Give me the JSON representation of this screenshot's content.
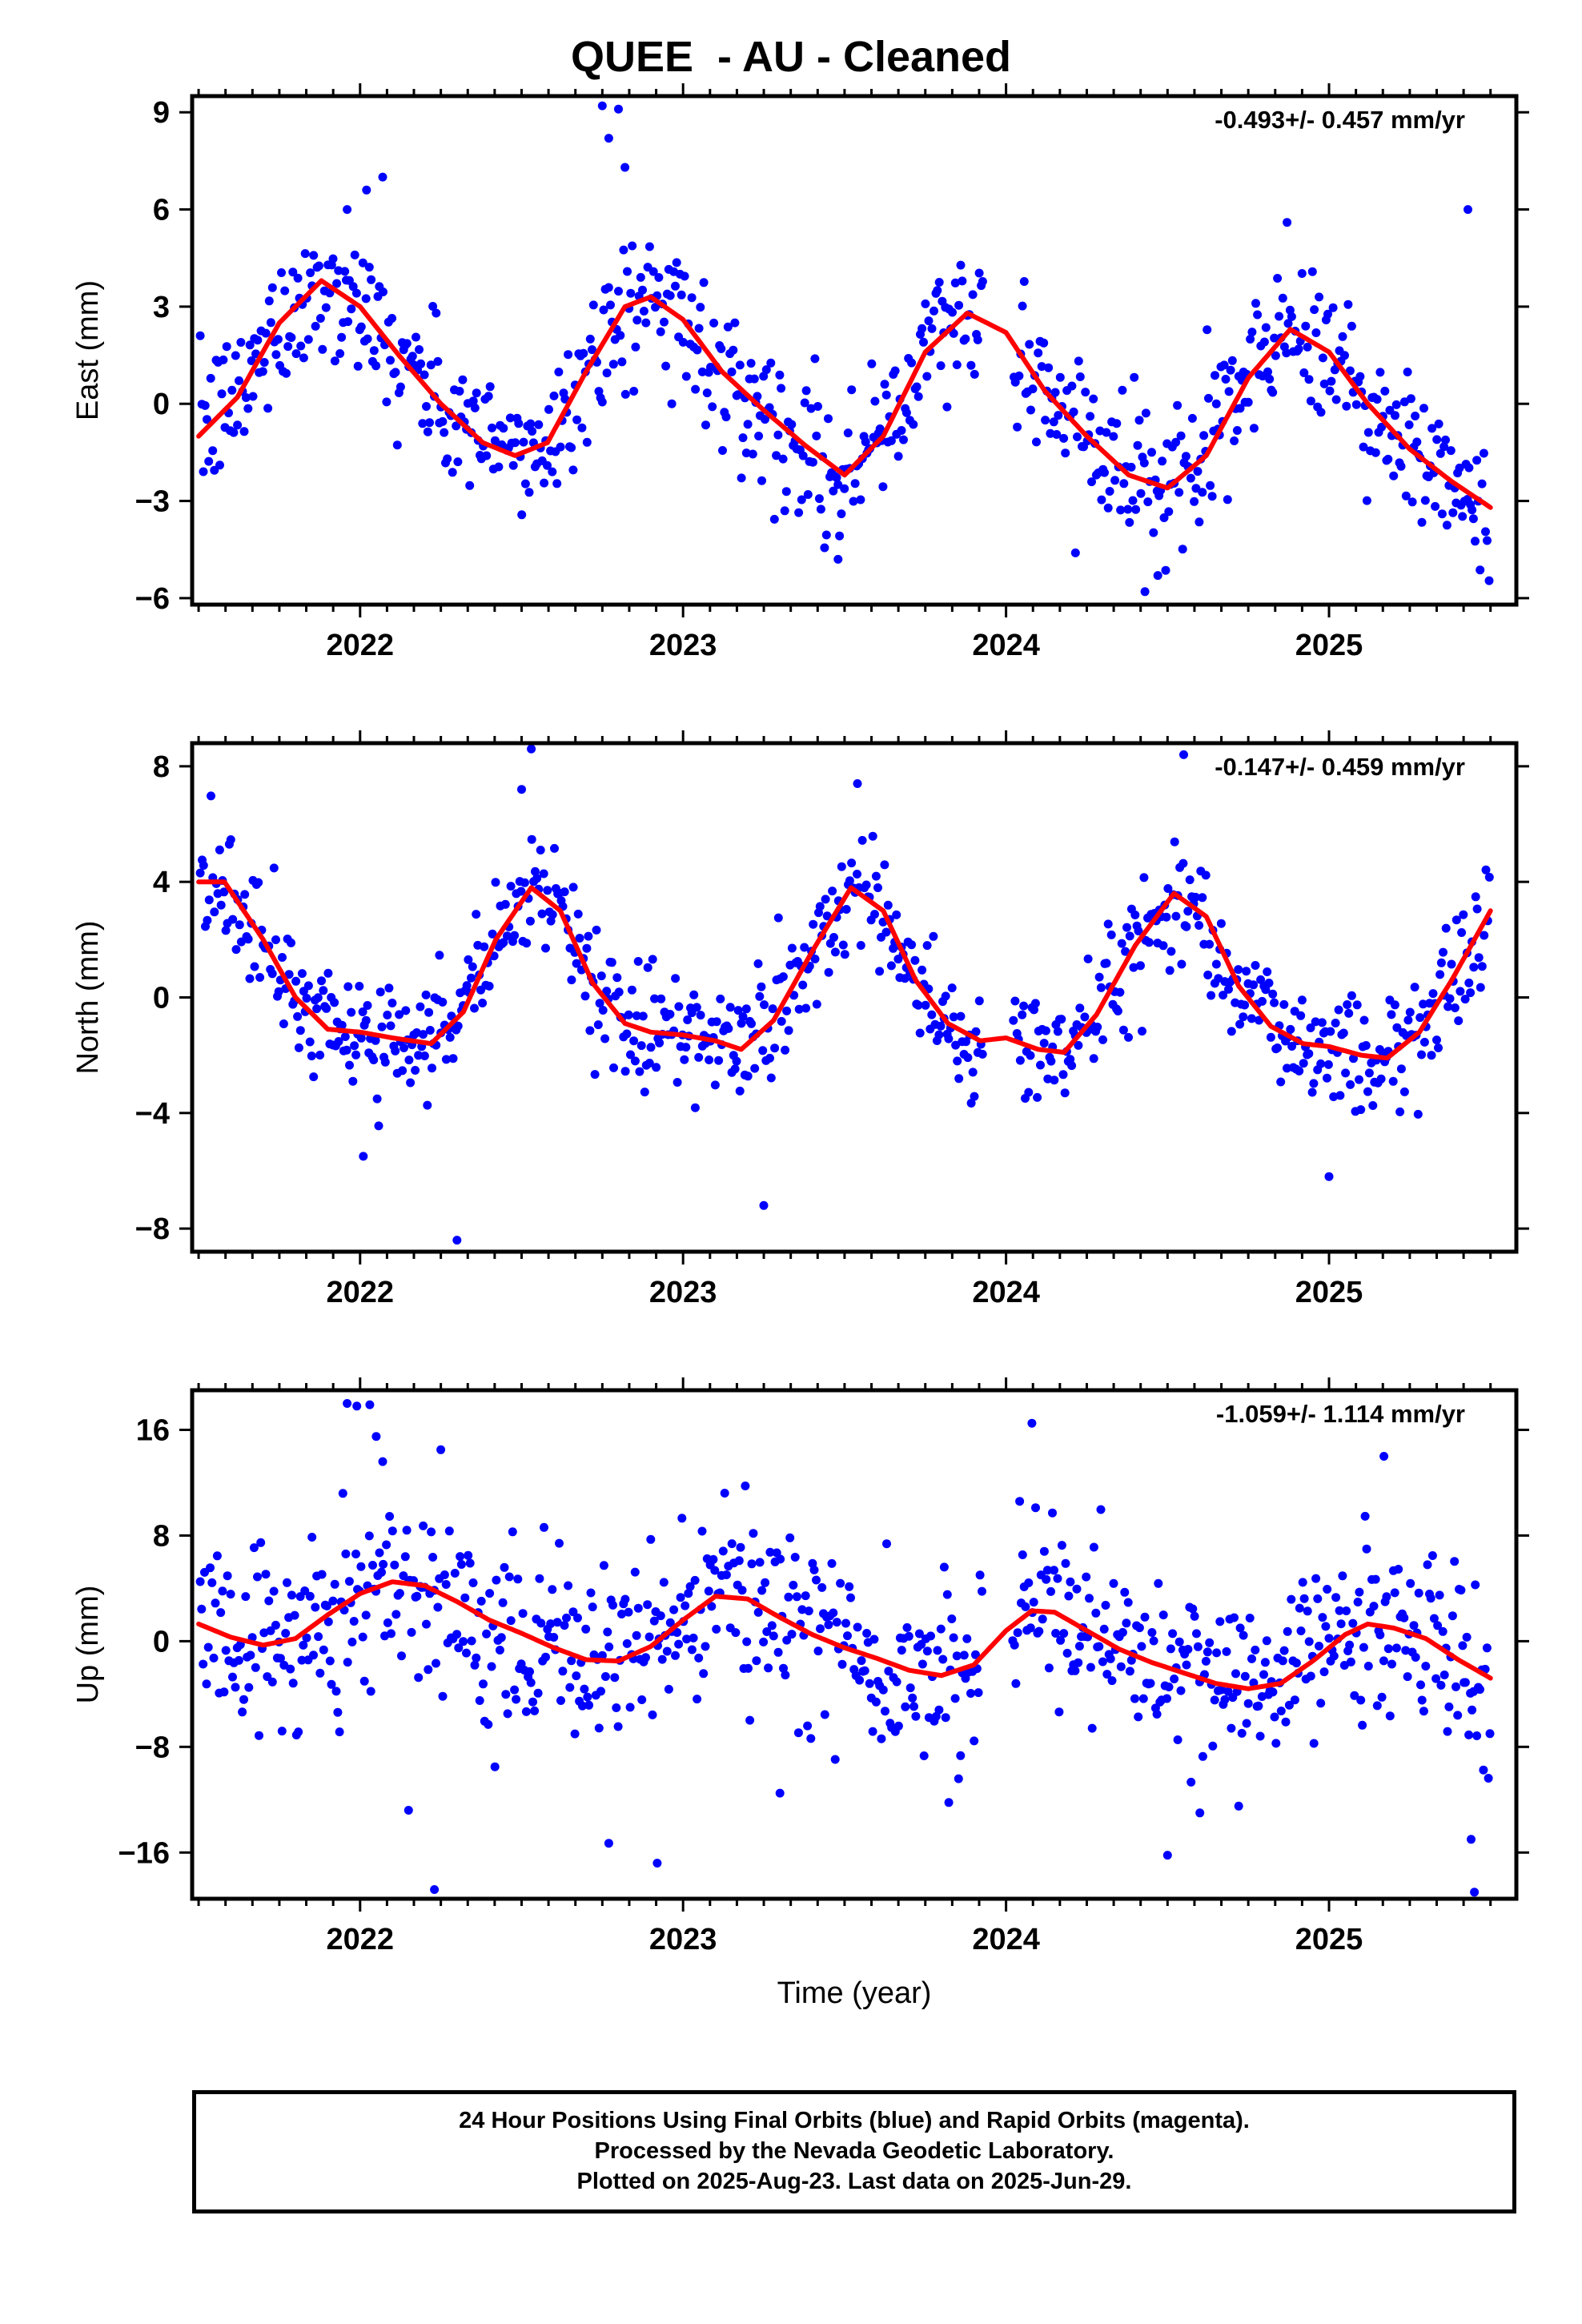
{
  "title": "QUEE  - AU - Cleaned",
  "colors": {
    "points": "#0000ff",
    "fit": "#ff0000",
    "axis": "#000000"
  },
  "footer": {
    "line1": "24 Hour Positions Using Final Orbits (blue) and Rapid Orbits (magenta).",
    "line2": "Processed by the Nevada Geodetic Laboratory.",
    "line3": "Plotted on 2025-Aug-23. Last data on 2025-Jun-29."
  },
  "chart_data": [
    {
      "type": "scatter",
      "ylabel": "East (mm)",
      "xlabel": "",
      "rate": "-0.493+/- 0.457 mm/yr",
      "xlim": [
        2021.48,
        2025.58
      ],
      "ylim": [
        -6.2,
        9.5
      ],
      "yticks": [
        -6,
        -3,
        0,
        3,
        6,
        9
      ],
      "xticks": [
        2022,
        2023,
        2024,
        2025
      ],
      "trend": [
        [
          2021.5,
          -1.0
        ],
        [
          2021.62,
          0.2
        ],
        [
          2021.75,
          2.5
        ],
        [
          2021.88,
          3.8
        ],
        [
          2022.0,
          3.0
        ],
        [
          2022.12,
          1.5
        ],
        [
          2022.25,
          0.0
        ],
        [
          2022.38,
          -1.2
        ],
        [
          2022.48,
          -1.6
        ],
        [
          2022.58,
          -1.2
        ],
        [
          2022.7,
          1.0
        ],
        [
          2022.82,
          3.0
        ],
        [
          2022.9,
          3.3
        ],
        [
          2023.0,
          2.6
        ],
        [
          2023.12,
          1.0
        ],
        [
          2023.25,
          -0.2
        ],
        [
          2023.38,
          -1.3
        ],
        [
          2023.5,
          -2.2
        ],
        [
          2023.62,
          -1.0
        ],
        [
          2023.75,
          1.6
        ],
        [
          2023.88,
          2.8
        ],
        [
          2024.0,
          2.2
        ],
        [
          2024.12,
          0.4
        ],
        [
          2024.25,
          -1.0
        ],
        [
          2024.38,
          -2.2
        ],
        [
          2024.5,
          -2.6
        ],
        [
          2024.62,
          -1.6
        ],
        [
          2024.75,
          0.8
        ],
        [
          2024.88,
          2.3
        ],
        [
          2025.0,
          1.6
        ],
        [
          2025.12,
          0.0
        ],
        [
          2025.25,
          -1.4
        ],
        [
          2025.38,
          -2.4
        ],
        [
          2025.5,
          -3.2
        ]
      ],
      "scatter_sigma": 1.1,
      "outliers": [
        [
          2022.75,
          9.2
        ],
        [
          2022.8,
          9.1
        ],
        [
          2022.77,
          8.2
        ],
        [
          2022.82,
          7.3
        ],
        [
          2025.43,
          6.0
        ],
        [
          2024.87,
          5.6
        ],
        [
          2022.07,
          7.0
        ],
        [
          2022.02,
          6.6
        ],
        [
          2021.96,
          6.0
        ],
        [
          2023.48,
          -4.8
        ],
        [
          2024.43,
          -5.8
        ],
        [
          2024.47,
          -5.3
        ]
      ]
    },
    {
      "type": "scatter",
      "ylabel": "North (mm)",
      "xlabel": "",
      "rate": "-0.147+/- 0.459 mm/yr",
      "xlim": [
        2021.48,
        2025.58
      ],
      "ylim": [
        -8.8,
        8.8
      ],
      "yticks": [
        -8,
        -4,
        0,
        4,
        8
      ],
      "xticks": [
        2022,
        2023,
        2024,
        2025
      ],
      "trend": [
        [
          2021.5,
          4.0
        ],
        [
          2021.58,
          4.0
        ],
        [
          2021.7,
          2.0
        ],
        [
          2021.8,
          0.0
        ],
        [
          2021.9,
          -1.1
        ],
        [
          2022.0,
          -1.2
        ],
        [
          2022.1,
          -1.4
        ],
        [
          2022.22,
          -1.6
        ],
        [
          2022.32,
          -0.5
        ],
        [
          2022.42,
          2.0
        ],
        [
          2022.53,
          3.8
        ],
        [
          2022.62,
          3.0
        ],
        [
          2022.72,
          0.5
        ],
        [
          2022.82,
          -0.9
        ],
        [
          2022.9,
          -1.2
        ],
        [
          2023.0,
          -1.3
        ],
        [
          2023.1,
          -1.5
        ],
        [
          2023.18,
          -1.8
        ],
        [
          2023.28,
          -0.8
        ],
        [
          2023.4,
          1.6
        ],
        [
          2023.52,
          3.8
        ],
        [
          2023.62,
          3.0
        ],
        [
          2023.72,
          0.6
        ],
        [
          2023.82,
          -0.9
        ],
        [
          2023.92,
          -1.5
        ],
        [
          2024.0,
          -1.4
        ],
        [
          2024.1,
          -1.8
        ],
        [
          2024.18,
          -1.9
        ],
        [
          2024.28,
          -0.6
        ],
        [
          2024.4,
          1.8
        ],
        [
          2024.52,
          3.6
        ],
        [
          2024.62,
          2.8
        ],
        [
          2024.72,
          0.4
        ],
        [
          2024.82,
          -1.0
        ],
        [
          2024.92,
          -1.6
        ],
        [
          2025.0,
          -1.7
        ],
        [
          2025.1,
          -2.0
        ],
        [
          2025.18,
          -2.1
        ],
        [
          2025.28,
          -1.2
        ],
        [
          2025.38,
          0.6
        ],
        [
          2025.5,
          3.0
        ]
      ],
      "scatter_sigma": 1.05,
      "outliers": [
        [
          2022.3,
          -8.4
        ],
        [
          2023.25,
          -7.2
        ],
        [
          2025.0,
          -6.2
        ],
        [
          2022.01,
          -5.5
        ],
        [
          2022.53,
          8.6
        ],
        [
          2024.55,
          8.4
        ],
        [
          2022.5,
          7.2
        ],
        [
          2023.54,
          7.4
        ]
      ]
    },
    {
      "type": "scatter",
      "ylabel": "Up (mm)",
      "xlabel": "Time (year)",
      "rate": "-1.059+/- 1.114 mm/yr",
      "xlim": [
        2021.48,
        2025.58
      ],
      "ylim": [
        -19.5,
        19
      ],
      "yticks": [
        -16,
        -8,
        0,
        8,
        16
      ],
      "xticks": [
        2022,
        2023,
        2024,
        2025
      ],
      "trend": [
        [
          2021.5,
          1.3
        ],
        [
          2021.6,
          0.3
        ],
        [
          2021.7,
          -0.3
        ],
        [
          2021.8,
          0.2
        ],
        [
          2021.9,
          2.0
        ],
        [
          2022.0,
          3.6
        ],
        [
          2022.1,
          4.5
        ],
        [
          2022.2,
          4.2
        ],
        [
          2022.3,
          3.0
        ],
        [
          2022.4,
          1.6
        ],
        [
          2022.5,
          0.6
        ],
        [
          2022.6,
          -0.5
        ],
        [
          2022.7,
          -1.4
        ],
        [
          2022.8,
          -1.5
        ],
        [
          2022.9,
          -0.4
        ],
        [
          2023.0,
          1.6
        ],
        [
          2023.1,
          3.4
        ],
        [
          2023.2,
          3.2
        ],
        [
          2023.3,
          1.8
        ],
        [
          2023.4,
          0.5
        ],
        [
          2023.5,
          -0.5
        ],
        [
          2023.6,
          -1.3
        ],
        [
          2023.7,
          -2.2
        ],
        [
          2023.8,
          -2.6
        ],
        [
          2023.9,
          -1.8
        ],
        [
          2024.0,
          0.8
        ],
        [
          2024.08,
          2.3
        ],
        [
          2024.15,
          2.2
        ],
        [
          2024.25,
          0.8
        ],
        [
          2024.35,
          -0.6
        ],
        [
          2024.45,
          -1.6
        ],
        [
          2024.55,
          -2.4
        ],
        [
          2024.65,
          -3.2
        ],
        [
          2024.75,
          -3.6
        ],
        [
          2024.85,
          -3.2
        ],
        [
          2024.95,
          -1.5
        ],
        [
          2025.05,
          0.5
        ],
        [
          2025.12,
          1.3
        ],
        [
          2025.2,
          1.0
        ],
        [
          2025.3,
          0.2
        ],
        [
          2025.4,
          -1.4
        ],
        [
          2025.5,
          -2.8
        ]
      ],
      "scatter_sigma": 3.4,
      "outliers": [
        [
          2021.96,
          18.0
        ],
        [
          2021.99,
          17.8
        ],
        [
          2022.03,
          17.9
        ],
        [
          2022.05,
          15.5
        ],
        [
          2022.07,
          13.6
        ],
        [
          2024.08,
          16.5
        ],
        [
          2025.17,
          14.0
        ],
        [
          2022.23,
          -18.8
        ],
        [
          2025.45,
          -19.0
        ],
        [
          2022.92,
          -16.8
        ],
        [
          2024.5,
          -16.2
        ],
        [
          2022.77,
          -15.3
        ],
        [
          2025.44,
          -15.0
        ],
        [
          2022.15,
          -12.8
        ],
        [
          2023.3,
          -11.5
        ],
        [
          2024.6,
          -13.0
        ]
      ]
    }
  ]
}
